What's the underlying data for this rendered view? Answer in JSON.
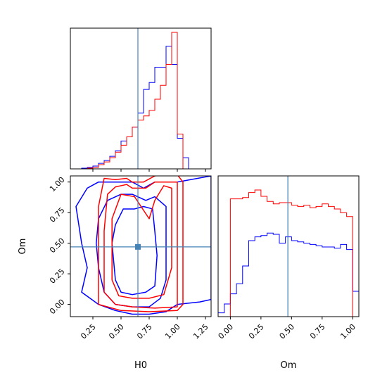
{
  "chart_data": {
    "type": "corner",
    "parameters": [
      "H0",
      "Om"
    ],
    "truth": {
      "H0": 0.65,
      "Om": 0.47
    },
    "truth_color": "#4682b4",
    "series": [
      {
        "name": "",
        "color": "#ff0000"
      },
      {
        "name": "",
        "color": "#0000ff"
      }
    ],
    "hist_H0": {
      "xlim": [
        0.05,
        1.3
      ],
      "ylim": [
        0,
        1.0
      ],
      "ticks": [
        0.25,
        0.5,
        0.75,
        1.0,
        1.25
      ],
      "red": {
        "edges": [
          0.15,
          0.2,
          0.25,
          0.3,
          0.35,
          0.4,
          0.45,
          0.5,
          0.55,
          0.6,
          0.65,
          0.7,
          0.75,
          0.8,
          0.85,
          0.9,
          0.95,
          1.0,
          1.05
        ],
        "counts": [
          0.0,
          0.005,
          0.01,
          0.03,
          0.05,
          0.08,
          0.12,
          0.17,
          0.23,
          0.3,
          0.35,
          0.38,
          0.42,
          0.5,
          0.6,
          0.75,
          0.98,
          0.25
        ]
      },
      "blue": {
        "edges": [
          0.1,
          0.15,
          0.2,
          0.25,
          0.3,
          0.35,
          0.4,
          0.45,
          0.5,
          0.55,
          0.6,
          0.65,
          0.7,
          0.75,
          0.8,
          0.85,
          0.9,
          0.95,
          1.0,
          1.05,
          1.1
        ],
        "counts": [
          0.0,
          0.005,
          0.01,
          0.02,
          0.04,
          0.06,
          0.09,
          0.13,
          0.2,
          0.23,
          0.3,
          0.4,
          0.57,
          0.62,
          0.73,
          0.73,
          0.88,
          0.75,
          0.22,
          0.08
        ]
      }
    },
    "hist_Om": {
      "xlim": [
        -0.1,
        1.05
      ],
      "ylim": [
        0,
        1.0
      ],
      "ticks": [
        0.0,
        0.25,
        0.5,
        0.75,
        1.0
      ],
      "red": {
        "edges": [
          0.0,
          0.05,
          0.1,
          0.15,
          0.2,
          0.25,
          0.3,
          0.35,
          0.4,
          0.45,
          0.5,
          0.55,
          0.6,
          0.65,
          0.7,
          0.75,
          0.8,
          0.85,
          0.9,
          0.95,
          1.0
        ],
        "counts": [
          0.93,
          0.93,
          0.94,
          0.98,
          1.0,
          0.95,
          0.91,
          0.89,
          0.9,
          0.9,
          0.88,
          0.87,
          0.88,
          0.86,
          0.87,
          0.89,
          0.87,
          0.85,
          0.82,
          0.79
        ]
      },
      "blue": {
        "edges": [
          -0.1,
          -0.05,
          0.0,
          0.05,
          0.1,
          0.15,
          0.2,
          0.25,
          0.3,
          0.35,
          0.4,
          0.45,
          0.5,
          0.55,
          0.6,
          0.65,
          0.7,
          0.75,
          0.8,
          0.85,
          0.9,
          0.95,
          1.0,
          1.05
        ],
        "counts": [
          0.03,
          0.1,
          0.18,
          0.26,
          0.4,
          0.6,
          0.63,
          0.64,
          0.66,
          0.65,
          0.58,
          0.63,
          0.6,
          0.59,
          0.58,
          0.57,
          0.56,
          0.55,
          0.55,
          0.54,
          0.57,
          0.53,
          0.2
        ]
      }
    },
    "contour": {
      "xlabel": "H0",
      "ylabel": "Om",
      "xlim": [
        0.05,
        1.3
      ],
      "ylim": [
        -0.1,
        1.05
      ],
      "xticks": [
        0.25,
        0.5,
        0.75,
        1.0,
        1.25
      ],
      "yticks": [
        0.0,
        0.25,
        0.5,
        0.75,
        1.0
      ],
      "red_levels": [
        [
          [
            0.3,
            0.0
          ],
          [
            0.5,
            -0.05
          ],
          [
            0.75,
            -0.06
          ],
          [
            1.0,
            -0.05
          ],
          [
            1.05,
            0.0
          ],
          [
            1.05,
            0.5
          ],
          [
            1.05,
            1.0
          ],
          [
            1.0,
            1.06
          ],
          [
            0.9,
            1.06
          ],
          [
            0.8,
            1.05
          ],
          [
            0.7,
            1.0
          ],
          [
            0.6,
            1.0
          ],
          [
            0.55,
            1.03
          ],
          [
            0.45,
            1.02
          ],
          [
            0.35,
            1.03
          ],
          [
            0.3,
            0.8
          ],
          [
            0.3,
            0.5
          ],
          [
            0.3,
            0.0
          ]
        ],
        [
          [
            0.35,
            0.1
          ],
          [
            0.45,
            0.0
          ],
          [
            0.6,
            -0.02
          ],
          [
            0.8,
            -0.03
          ],
          [
            1.0,
            -0.02
          ],
          [
            1.0,
            0.5
          ],
          [
            1.0,
            1.0
          ],
          [
            0.8,
            1.0
          ],
          [
            0.72,
            0.95
          ],
          [
            0.6,
            0.95
          ],
          [
            0.55,
            0.98
          ],
          [
            0.45,
            0.96
          ],
          [
            0.38,
            0.9
          ],
          [
            0.35,
            0.6
          ],
          [
            0.35,
            0.1
          ]
        ],
        [
          [
            0.42,
            0.2
          ],
          [
            0.48,
            0.07
          ],
          [
            0.6,
            0.05
          ],
          [
            0.75,
            0.05
          ],
          [
            0.88,
            0.08
          ],
          [
            0.95,
            0.3
          ],
          [
            0.95,
            0.6
          ],
          [
            0.95,
            0.95
          ],
          [
            0.88,
            0.97
          ],
          [
            0.8,
            0.85
          ],
          [
            0.75,
            0.7
          ],
          [
            0.62,
            0.88
          ],
          [
            0.5,
            0.9
          ],
          [
            0.42,
            0.7
          ],
          [
            0.42,
            0.2
          ]
        ]
      ],
      "blue_levels": [
        [
          [
            0.3,
            0.0
          ],
          [
            0.45,
            -0.05
          ],
          [
            0.6,
            -0.08
          ],
          [
            0.75,
            -0.08
          ],
          [
            0.9,
            -0.06
          ],
          [
            1.0,
            0.0
          ],
          [
            1.2,
            0.02
          ],
          [
            1.3,
            0.04
          ],
          [
            1.3,
            0.8
          ],
          [
            1.3,
            1.05
          ],
          [
            1.0,
            1.0
          ],
          [
            0.8,
            1.0
          ],
          [
            0.7,
            0.95
          ],
          [
            0.6,
            1.0
          ],
          [
            0.5,
            1.0
          ],
          [
            0.3,
            1.0
          ],
          [
            0.2,
            0.95
          ],
          [
            0.1,
            0.8
          ],
          [
            0.15,
            0.5
          ],
          [
            0.2,
            0.3
          ],
          [
            0.15,
            0.1
          ],
          [
            0.3,
            0.0
          ]
        ],
        [
          [
            0.35,
            0.1
          ],
          [
            0.45,
            0.0
          ],
          [
            0.6,
            -0.02
          ],
          [
            0.75,
            -0.02
          ],
          [
            0.85,
            0.05
          ],
          [
            0.9,
            0.2
          ],
          [
            0.9,
            0.5
          ],
          [
            0.9,
            0.8
          ],
          [
            0.8,
            0.88
          ],
          [
            0.72,
            0.85
          ],
          [
            0.6,
            0.9
          ],
          [
            0.5,
            0.9
          ],
          [
            0.38,
            0.85
          ],
          [
            0.3,
            0.7
          ],
          [
            0.28,
            0.5
          ],
          [
            0.3,
            0.3
          ],
          [
            0.35,
            0.1
          ]
        ],
        [
          [
            0.45,
            0.2
          ],
          [
            0.5,
            0.1
          ],
          [
            0.6,
            0.08
          ],
          [
            0.72,
            0.1
          ],
          [
            0.8,
            0.15
          ],
          [
            0.82,
            0.4
          ],
          [
            0.8,
            0.6
          ],
          [
            0.78,
            0.78
          ],
          [
            0.7,
            0.8
          ],
          [
            0.62,
            0.78
          ],
          [
            0.52,
            0.78
          ],
          [
            0.45,
            0.65
          ],
          [
            0.42,
            0.5
          ],
          [
            0.45,
            0.2
          ]
        ]
      ]
    }
  }
}
